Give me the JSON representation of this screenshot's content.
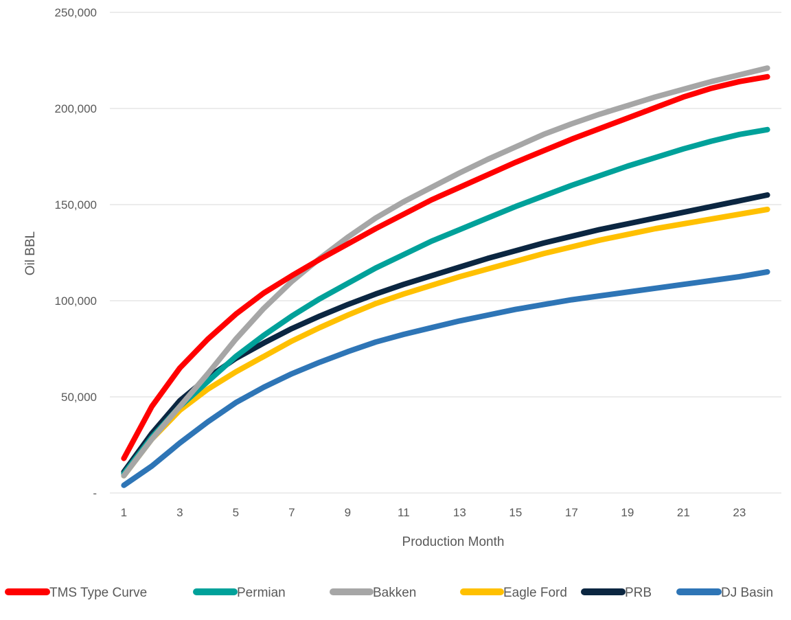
{
  "chart_data": {
    "type": "line",
    "title": "",
    "xlabel": "Production Month",
    "ylabel": "Oil BBL",
    "x": [
      1,
      2,
      3,
      4,
      5,
      6,
      7,
      8,
      9,
      10,
      11,
      12,
      13,
      14,
      15,
      16,
      17,
      18,
      19,
      20,
      21,
      22,
      23,
      24
    ],
    "x_tick_labels": [
      "1",
      "3",
      "5",
      "7",
      "9",
      "11",
      "13",
      "15",
      "17",
      "19",
      "21",
      "23"
    ],
    "y_tick_labels": [
      "-",
      "50,000",
      "100,000",
      "150,000",
      "200,000",
      "250,000"
    ],
    "ylim": [
      0,
      250000
    ],
    "grid": "horizontal",
    "legend_position": "bottom",
    "series": [
      {
        "name": "DJ Basin",
        "color": "#2e75b6",
        "values": [
          4000,
          14000,
          26000,
          37000,
          47000,
          55000,
          62000,
          68000,
          73500,
          78500,
          82500,
          86000,
          89500,
          92500,
          95500,
          98000,
          100500,
          102500,
          104500,
          106500,
          108500,
          110500,
          112500,
          115000
        ]
      },
      {
        "name": "Eagle Ford",
        "color": "#ffc000",
        "values": [
          9000,
          28000,
          43000,
          54000,
          63000,
          71000,
          79000,
          86000,
          92500,
          98500,
          103500,
          108000,
          112500,
          116500,
          120500,
          124500,
          128000,
          131500,
          134500,
          137500,
          140000,
          142500,
          145000,
          147500
        ]
      },
      {
        "name": "PRB",
        "color": "#0b2641",
        "values": [
          11000,
          31000,
          48000,
          60000,
          70000,
          78000,
          85500,
          92000,
          98000,
          103500,
          108500,
          113000,
          117500,
          122000,
          126000,
          130000,
          133500,
          137000,
          140000,
          143000,
          146000,
          149000,
          152000,
          155000
        ]
      },
      {
        "name": "Permian",
        "color": "#00a19a",
        "values": [
          10000,
          29000,
          45000,
          58000,
          71000,
          82000,
          92000,
          101000,
          109000,
          117000,
          124000,
          131000,
          137000,
          143000,
          149000,
          154500,
          160000,
          165000,
          170000,
          174500,
          179000,
          183000,
          186500,
          189000
        ]
      },
      {
        "name": "Bakken",
        "color": "#a6a6a6",
        "values": [
          9000,
          28000,
          45000,
          62000,
          80000,
          96000,
          110000,
          122000,
          133000,
          143000,
          151500,
          159000,
          166500,
          173500,
          180000,
          186500,
          192000,
          197000,
          201500,
          206000,
          210000,
          214000,
          217500,
          221000
        ]
      },
      {
        "name": "TMS Type Curve",
        "color": "#ff0000",
        "values": [
          18000,
          45000,
          65000,
          80000,
          93000,
          104000,
          113000,
          121500,
          129500,
          137500,
          145000,
          152500,
          159000,
          165500,
          172000,
          178000,
          184000,
          189500,
          195000,
          200500,
          206000,
          210500,
          214000,
          216500
        ]
      }
    ],
    "legend": [
      "TMS Type Curve",
      "Permian",
      "Bakken",
      "Eagle Ford",
      "PRB",
      "DJ Basin"
    ]
  }
}
